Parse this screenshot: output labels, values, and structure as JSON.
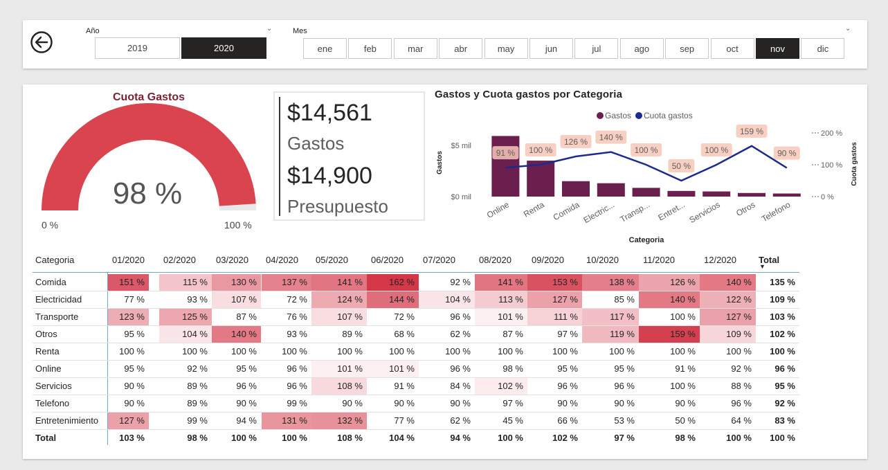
{
  "filters": {
    "year_label": "Año",
    "years": [
      {
        "label": "2019",
        "selected": false
      },
      {
        "label": "2020",
        "selected": true
      }
    ],
    "month_label": "Mes",
    "months": [
      {
        "label": "ene",
        "selected": false
      },
      {
        "label": "feb",
        "selected": false
      },
      {
        "label": "mar",
        "selected": false
      },
      {
        "label": "abr",
        "selected": false
      },
      {
        "label": "may",
        "selected": false
      },
      {
        "label": "jun",
        "selected": false
      },
      {
        "label": "jul",
        "selected": false
      },
      {
        "label": "ago",
        "selected": false
      },
      {
        "label": "sep",
        "selected": false
      },
      {
        "label": "oct",
        "selected": false
      },
      {
        "label": "nov",
        "selected": true
      },
      {
        "label": "dic",
        "selected": false
      }
    ]
  },
  "gauge": {
    "title": "Cuota Gastos",
    "value_label": "98 %",
    "value": 0.98,
    "min_label": "0 %",
    "max_label": "100 %",
    "color": "#d9444f"
  },
  "kpi": {
    "gastos_value": "$14,561",
    "gastos_label": "Gastos",
    "presupuesto_value": "$14,900",
    "presupuesto_label": "Presupuesto"
  },
  "chart_data": {
    "type": "bar",
    "title": "Gastos y Cuota gastos por Categoria",
    "xlabel": "Categoria",
    "ylabel": "Gastos",
    "y2label": "Cuota gastos",
    "categories": [
      "Online",
      "Renta",
      "Comida",
      "Electric...",
      "Transp...",
      "Entret...",
      "Servicios",
      "Otros",
      "Telefono"
    ],
    "series": [
      {
        "name": "Gastos",
        "type": "bar",
        "color": "#6b1f4f",
        "values": [
          5.9,
          3.5,
          1.5,
          1.3,
          0.85,
          0.55,
          0.5,
          0.35,
          0.3
        ]
      },
      {
        "name": "Cuota gastos",
        "type": "line",
        "color": "#1a2b8c",
        "values": [
          91,
          100,
          126,
          140,
          100,
          50,
          100,
          159,
          90
        ]
      }
    ],
    "data_labels": [
      "91 %",
      "100 %",
      "126 %",
      "140 %",
      "100 %",
      "50 %",
      "100 %",
      "159 %",
      "90 %"
    ],
    "y_ticks": [
      "$0 mil",
      "$5 mil"
    ],
    "y2_ticks": [
      "0 %",
      "100 %",
      "200 %"
    ],
    "ylim": [
      0,
      6.2
    ],
    "y2lim": [
      0,
      200
    ],
    "legend_position": "top"
  },
  "matrix": {
    "corner": "Categoria",
    "columns": [
      "01/2020",
      "02/2020",
      "03/2020",
      "04/2020",
      "05/2020",
      "06/2020",
      "07/2020",
      "08/2020",
      "09/2020",
      "10/2020",
      "11/2020",
      "12/2020",
      "Total"
    ],
    "rows": [
      {
        "label": "Comida",
        "values": [
          "151 %",
          "115 %",
          "130 %",
          "137 %",
          "141 %",
          "162 %",
          "92 %",
          "141 %",
          "153 %",
          "138 %",
          "126 %",
          "140 %",
          "135 %"
        ]
      },
      {
        "label": "Electricidad",
        "values": [
          "77 %",
          "93 %",
          "107 %",
          "72 %",
          "124 %",
          "144 %",
          "104 %",
          "113 %",
          "127 %",
          "85 %",
          "140 %",
          "122 %",
          "109 %"
        ]
      },
      {
        "label": "Transporte",
        "values": [
          "123 %",
          "125 %",
          "87 %",
          "76 %",
          "107 %",
          "72 %",
          "96 %",
          "101 %",
          "111 %",
          "117 %",
          "100 %",
          "127 %",
          "103 %"
        ]
      },
      {
        "label": "Otros",
        "values": [
          "95 %",
          "104 %",
          "140 %",
          "93 %",
          "89 %",
          "68 %",
          "62 %",
          "87 %",
          "97 %",
          "119 %",
          "159 %",
          "109 %",
          "102 %"
        ]
      },
      {
        "label": "Renta",
        "values": [
          "100 %",
          "100 %",
          "100 %",
          "100 %",
          "100 %",
          "100 %",
          "100 %",
          "100 %",
          "100 %",
          "100 %",
          "100 %",
          "100 %",
          "100 %"
        ]
      },
      {
        "label": "Online",
        "values": [
          "95 %",
          "92 %",
          "95 %",
          "96 %",
          "101 %",
          "101 %",
          "96 %",
          "98 %",
          "95 %",
          "95 %",
          "91 %",
          "92 %",
          "96 %"
        ]
      },
      {
        "label": "Servicios",
        "values": [
          "90 %",
          "89 %",
          "96 %",
          "96 %",
          "108 %",
          "91 %",
          "84 %",
          "102 %",
          "96 %",
          "96 %",
          "100 %",
          "88 %",
          "95 %"
        ]
      },
      {
        "label": "Telefono",
        "values": [
          "90 %",
          "89 %",
          "90 %",
          "99 %",
          "90 %",
          "90 %",
          "90 %",
          "97 %",
          "90 %",
          "90 %",
          "90 %",
          "96 %",
          "92 %"
        ]
      },
      {
        "label": "Entretenimiento",
        "values": [
          "127 %",
          "99 %",
          "94 %",
          "131 %",
          "132 %",
          "77 %",
          "62 %",
          "45 %",
          "66 %",
          "53 %",
          "50 %",
          "64 %",
          "83 %"
        ]
      }
    ],
    "total_row": {
      "label": "Total",
      "values": [
        "103 %",
        "98 %",
        "100 %",
        "100 %",
        "108 %",
        "104 %",
        "94 %",
        "100 %",
        "102 %",
        "97 %",
        "98 %",
        "100 %",
        "100 %"
      ]
    }
  }
}
